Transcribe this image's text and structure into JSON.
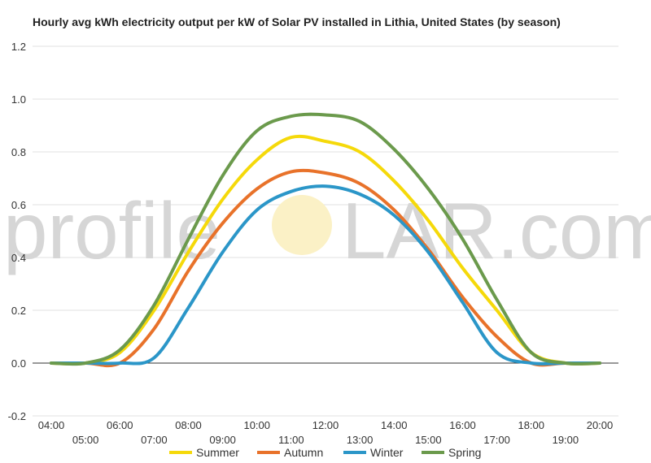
{
  "chart_data": {
    "type": "line",
    "title": "Hourly avg kWh electricity output per kW of Solar PV installed in Lithia, United States (by season)",
    "xlabel": "",
    "ylabel": "",
    "ylim": [
      -0.2,
      1.2
    ],
    "yticks": [
      "-0.2",
      "0.0",
      "0.2",
      "0.4",
      "0.6",
      "0.8",
      "1.0",
      "1.2"
    ],
    "x": [
      "04:00",
      "05:00",
      "06:00",
      "07:00",
      "08:00",
      "09:00",
      "10:00",
      "11:00",
      "12:00",
      "13:00",
      "14:00",
      "15:00",
      "16:00",
      "17:00",
      "18:00",
      "19:00",
      "20:00"
    ],
    "grid": true,
    "legend_position": "bottom",
    "series": [
      {
        "name": "Summer",
        "color": "#f5d90a",
        "values": [
          0.0,
          0.0,
          0.04,
          0.2,
          0.42,
          0.62,
          0.77,
          0.855,
          0.84,
          0.8,
          0.69,
          0.54,
          0.36,
          0.2,
          0.04,
          0.0,
          0.0
        ]
      },
      {
        "name": "Autumn",
        "color": "#e8722a",
        "values": [
          0.0,
          0.0,
          0.0,
          0.13,
          0.35,
          0.53,
          0.66,
          0.725,
          0.72,
          0.68,
          0.58,
          0.43,
          0.25,
          0.1,
          0.0,
          0.0,
          0.0
        ]
      },
      {
        "name": "Winter",
        "color": "#2b96c8",
        "values": [
          0.0,
          0.0,
          0.0,
          0.02,
          0.21,
          0.42,
          0.58,
          0.65,
          0.67,
          0.64,
          0.56,
          0.42,
          0.23,
          0.04,
          0.0,
          0.0,
          0.0
        ]
      },
      {
        "name": "Spring",
        "color": "#6b9a4c",
        "values": [
          0.0,
          0.0,
          0.05,
          0.22,
          0.47,
          0.71,
          0.88,
          0.935,
          0.94,
          0.915,
          0.81,
          0.66,
          0.47,
          0.24,
          0.04,
          0.0,
          0.0
        ]
      }
    ]
  },
  "watermark": {
    "left": "profile",
    "right": "LAR.com"
  }
}
